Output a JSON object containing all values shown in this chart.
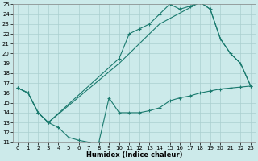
{
  "xlabel": "Humidex (Indice chaleur)",
  "background_color": "#cceaea",
  "grid_color": "#aacfcf",
  "line_color": "#1a7a6e",
  "xlim": [
    -0.5,
    23.5
  ],
  "ylim": [
    11,
    25
  ],
  "yticks": [
    11,
    12,
    13,
    14,
    15,
    16,
    17,
    18,
    19,
    20,
    21,
    22,
    23,
    24,
    25
  ],
  "xticks": [
    0,
    1,
    2,
    3,
    4,
    5,
    6,
    7,
    8,
    9,
    10,
    11,
    12,
    13,
    14,
    15,
    16,
    17,
    18,
    19,
    20,
    21,
    22,
    23
  ],
  "line_bottom_x": [
    0,
    1,
    2,
    3,
    4,
    5,
    6,
    7,
    8,
    9,
    10,
    11,
    12,
    13,
    14,
    15,
    16,
    17,
    18,
    19,
    20,
    21,
    22,
    23
  ],
  "line_bottom_y": [
    16.5,
    16.0,
    14.0,
    13.0,
    12.5,
    11.5,
    11.2,
    11.0,
    11.0,
    15.5,
    14.0,
    14.0,
    14.0,
    14.2,
    14.5,
    15.2,
    15.5,
    15.7,
    16.0,
    16.2,
    16.4,
    16.5,
    16.6,
    16.7
  ],
  "line_top_x": [
    0,
    1,
    2,
    3,
    10,
    11,
    12,
    13,
    14,
    15,
    16,
    17,
    18,
    19,
    20,
    21,
    22,
    23
  ],
  "line_top_y": [
    16.5,
    16.0,
    14.0,
    13.0,
    19.5,
    22.0,
    22.5,
    23.0,
    24.0,
    25.0,
    24.5,
    24.8,
    25.2,
    24.5,
    21.5,
    20.0,
    19.0,
    16.7
  ],
  "line_diag_x": [
    0,
    1,
    2,
    3,
    10,
    14,
    18,
    19,
    20,
    21,
    22,
    23
  ],
  "line_diag_y": [
    16.5,
    16.0,
    14.0,
    13.0,
    19.0,
    23.0,
    25.2,
    24.5,
    21.5,
    20.0,
    19.0,
    16.7
  ]
}
